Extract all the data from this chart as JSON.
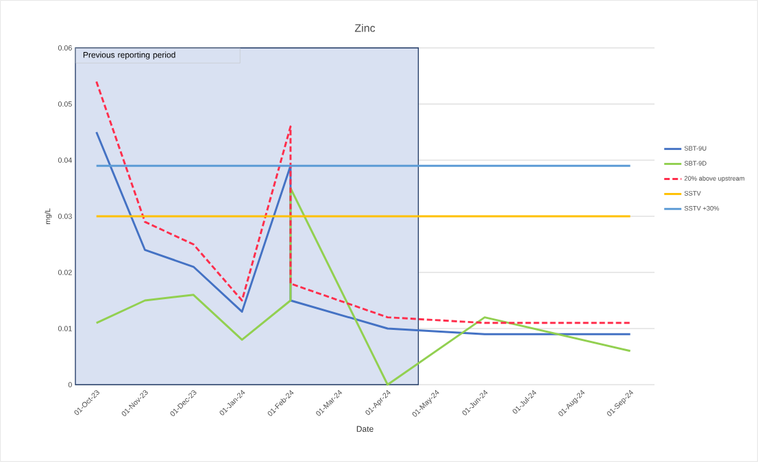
{
  "chart_data": {
    "type": "line",
    "title": "Zinc",
    "xlabel": "Date",
    "ylabel": "mg/L",
    "series": [
      {
        "name": "SBT-9U",
        "color": "#4472c4",
        "line_style": "solid",
        "x": [
          "2023-10-01",
          "2023-11-01",
          "2023-12-01",
          "2024-01-01",
          "2024-02-01",
          "2024-02-01",
          "2024-04-01",
          "2024-06-01",
          "2024-09-01"
        ],
        "values": [
          0.045,
          0.024,
          0.021,
          0.013,
          0.039,
          0.015,
          0.01,
          0.009,
          0.009
        ]
      },
      {
        "name": "SBT-9D",
        "color": "#92d050",
        "line_style": "solid",
        "x": [
          "2023-10-01",
          "2023-11-01",
          "2023-12-01",
          "2024-01-01",
          "2024-02-01",
          "2024-02-01",
          "2024-04-01",
          "2024-06-01",
          "2024-09-01"
        ],
        "values": [
          0.011,
          0.015,
          0.016,
          0.008,
          0.015,
          0.035,
          0.0,
          0.012,
          0.006
        ]
      },
      {
        "name": "20% above upstream",
        "color": "#ff2e4c",
        "line_style": "dashed",
        "x": [
          "2023-10-01",
          "2023-11-01",
          "2023-12-01",
          "2024-01-01",
          "2024-02-01",
          "2024-02-01",
          "2024-04-01",
          "2024-06-01",
          "2024-09-01"
        ],
        "values": [
          0.054,
          0.029,
          0.025,
          0.015,
          0.046,
          0.018,
          0.012,
          0.011,
          0.011
        ]
      },
      {
        "name": "SSTV",
        "color": "#ffc000",
        "line_style": "solid",
        "x": [
          "2023-10-01",
          "2024-09-01"
        ],
        "values": [
          0.03,
          0.03
        ]
      },
      {
        "name": "SSTV +30%",
        "color": "#5b9bd5",
        "line_style": "solid",
        "x": [
          "2023-10-01",
          "2024-09-01"
        ],
        "values": [
          0.039,
          0.039
        ]
      }
    ],
    "xlim": [
      "2023-09-18",
      "2024-09-16"
    ],
    "xticks": [
      {
        "value": "2023-10-01",
        "label": "01-Oct-23"
      },
      {
        "value": "2023-11-01",
        "label": "01-Nov-23"
      },
      {
        "value": "2023-12-01",
        "label": "01-Dec-23"
      },
      {
        "value": "2024-01-01",
        "label": "01-Jan-24"
      },
      {
        "value": "2024-02-01",
        "label": "01-Feb-24"
      },
      {
        "value": "2024-03-01",
        "label": "01-Mar-24"
      },
      {
        "value": "2024-04-01",
        "label": "01-Apr-24"
      },
      {
        "value": "2024-05-01",
        "label": "01-May-24"
      },
      {
        "value": "2024-06-01",
        "label": "01-Jun-24"
      },
      {
        "value": "2024-07-01",
        "label": "01-Jul-24"
      },
      {
        "value": "2024-08-01",
        "label": "01-Aug-24"
      },
      {
        "value": "2024-09-01",
        "label": "01-Sep-24"
      }
    ],
    "ylim": [
      0,
      0.06
    ],
    "yticks": [
      0,
      0.01,
      0.02,
      0.03,
      0.04,
      0.05,
      0.06
    ],
    "bands": [
      {
        "axis": "x",
        "from": "2023-09-18",
        "to": "2024-04-20",
        "label": "Previous reporting period",
        "color": "#d9e1f2"
      }
    ],
    "grid": "y",
    "legend": "right",
    "marker": "none"
  }
}
